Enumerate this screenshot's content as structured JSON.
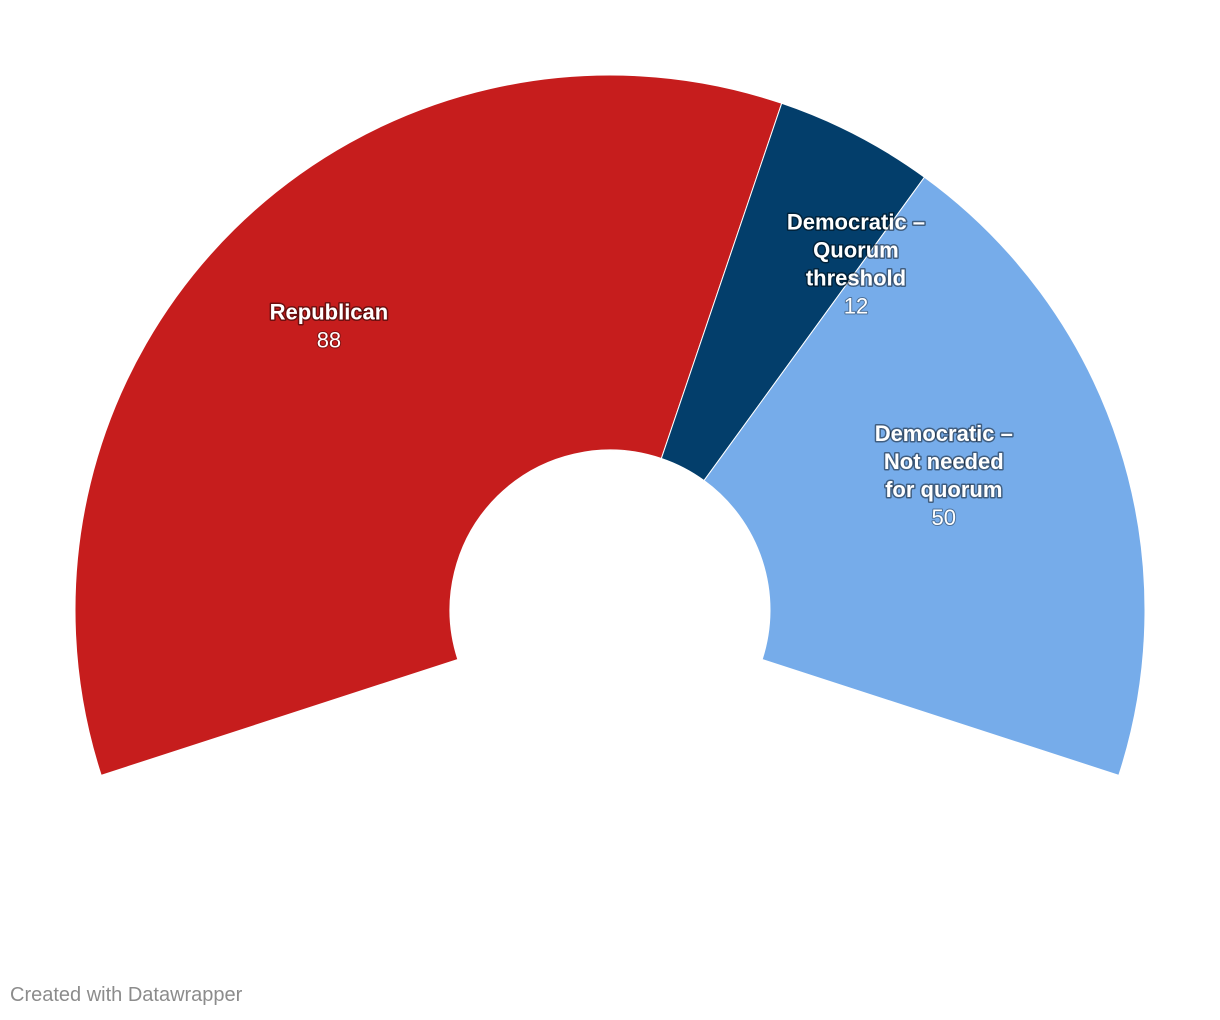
{
  "chart_data": {
    "type": "pie",
    "variant": "semi-donut",
    "title": "",
    "categories": [
      [
        "Republican"
      ],
      [
        "Democratic –",
        "Quorum",
        "threshold"
      ],
      [
        "Democratic –",
        "Not needed",
        "for quorum"
      ]
    ],
    "values": [
      88,
      12,
      50
    ],
    "value_labels": [
      "88",
      "12",
      "50"
    ],
    "colors": [
      "#c61d1d",
      "#033e6b",
      "#76acea"
    ],
    "legend": "none (labels drawn on slices)"
  },
  "footer": {
    "credit": "Created with Datawrapper"
  }
}
